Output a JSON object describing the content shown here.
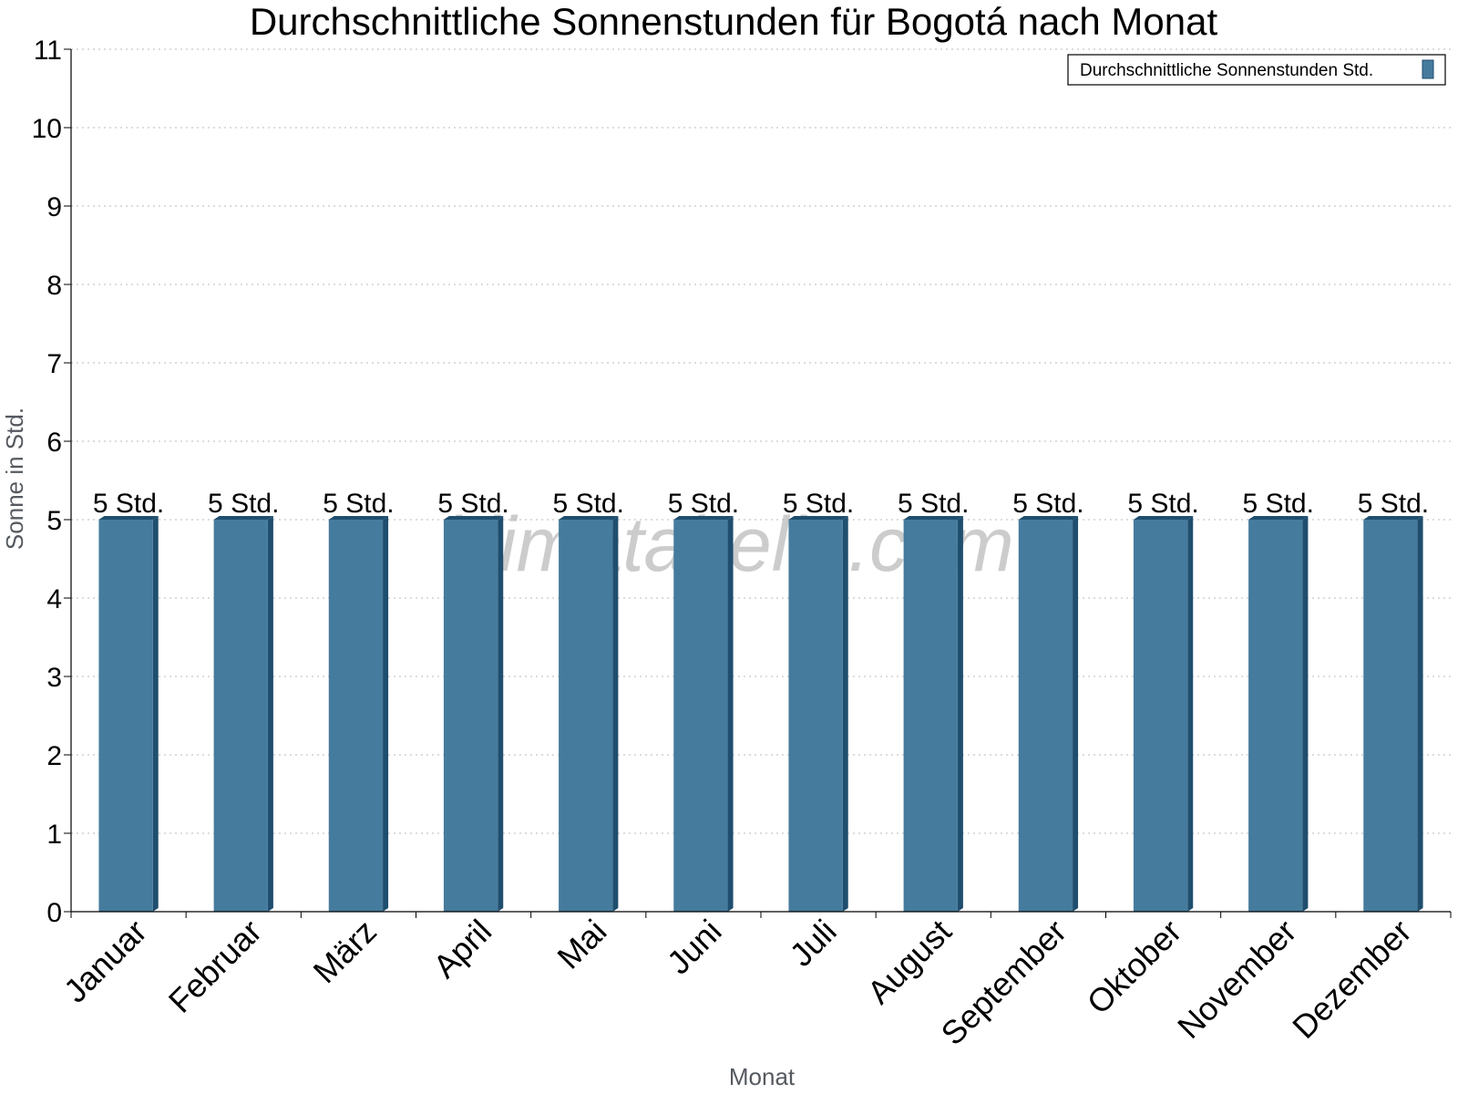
{
  "chart_data": {
    "type": "bar",
    "title": "Durchschnittliche Sonnenstunden für Bogotá nach Monat",
    "xlabel": "Monat",
    "ylabel": "Sonne in Std.",
    "ylim": [
      0,
      11
    ],
    "y_ticks": [
      0,
      1,
      2,
      3,
      4,
      5,
      6,
      7,
      8,
      9,
      10,
      11
    ],
    "grid": true,
    "legend_position": "top-right",
    "categories": [
      "Januar",
      "Februar",
      "März",
      "April",
      "Mai",
      "Juni",
      "Juli",
      "August",
      "September",
      "Oktober",
      "November",
      "Dezember"
    ],
    "series": [
      {
        "name": "Durchschnittliche Sonnenstunden Std.",
        "color": "#457b9d",
        "values": [
          5,
          5,
          5,
          5,
          5,
          5,
          5,
          5,
          5,
          5,
          5,
          5
        ],
        "labels": [
          "5 Std.",
          "5 Std.",
          "5 Std.",
          "5 Std.",
          "5 Std.",
          "5 Std.",
          "5 Std.",
          "5 Std.",
          "5 Std.",
          "5 Std.",
          "5 Std.",
          "5 Std."
        ]
      }
    ]
  },
  "watermark": "klimatabelle.com"
}
